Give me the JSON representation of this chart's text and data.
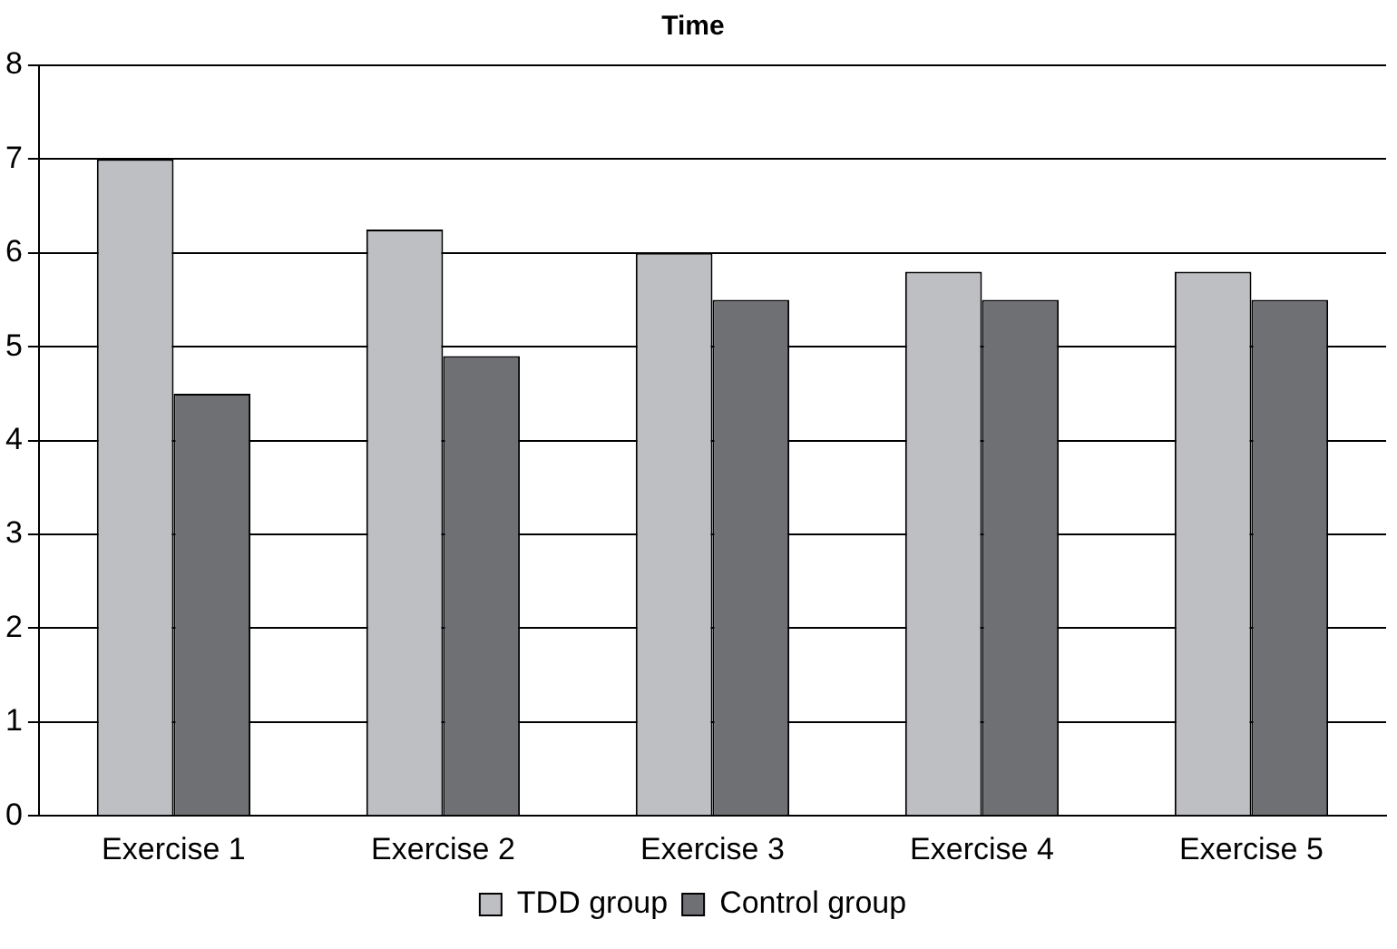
{
  "chart_data": {
    "type": "bar",
    "title": "Time",
    "categories": [
      "Exercise 1",
      "Exercise 2",
      "Exercise 3",
      "Exercise 4",
      "Exercise 5"
    ],
    "series": [
      {
        "name": "TDD group",
        "color": "#bebfc3",
        "values": [
          7,
          6.25,
          6,
          5.8,
          5.8
        ]
      },
      {
        "name": "Control group",
        "color": "#6f7074",
        "values": [
          4.5,
          4.9,
          5.5,
          5.5,
          5.5
        ]
      }
    ],
    "ylim": [
      0,
      8
    ],
    "yticks": [
      0,
      1,
      2,
      3,
      4,
      5,
      6,
      7,
      8
    ],
    "grid": "y",
    "legend": "bottom"
  }
}
